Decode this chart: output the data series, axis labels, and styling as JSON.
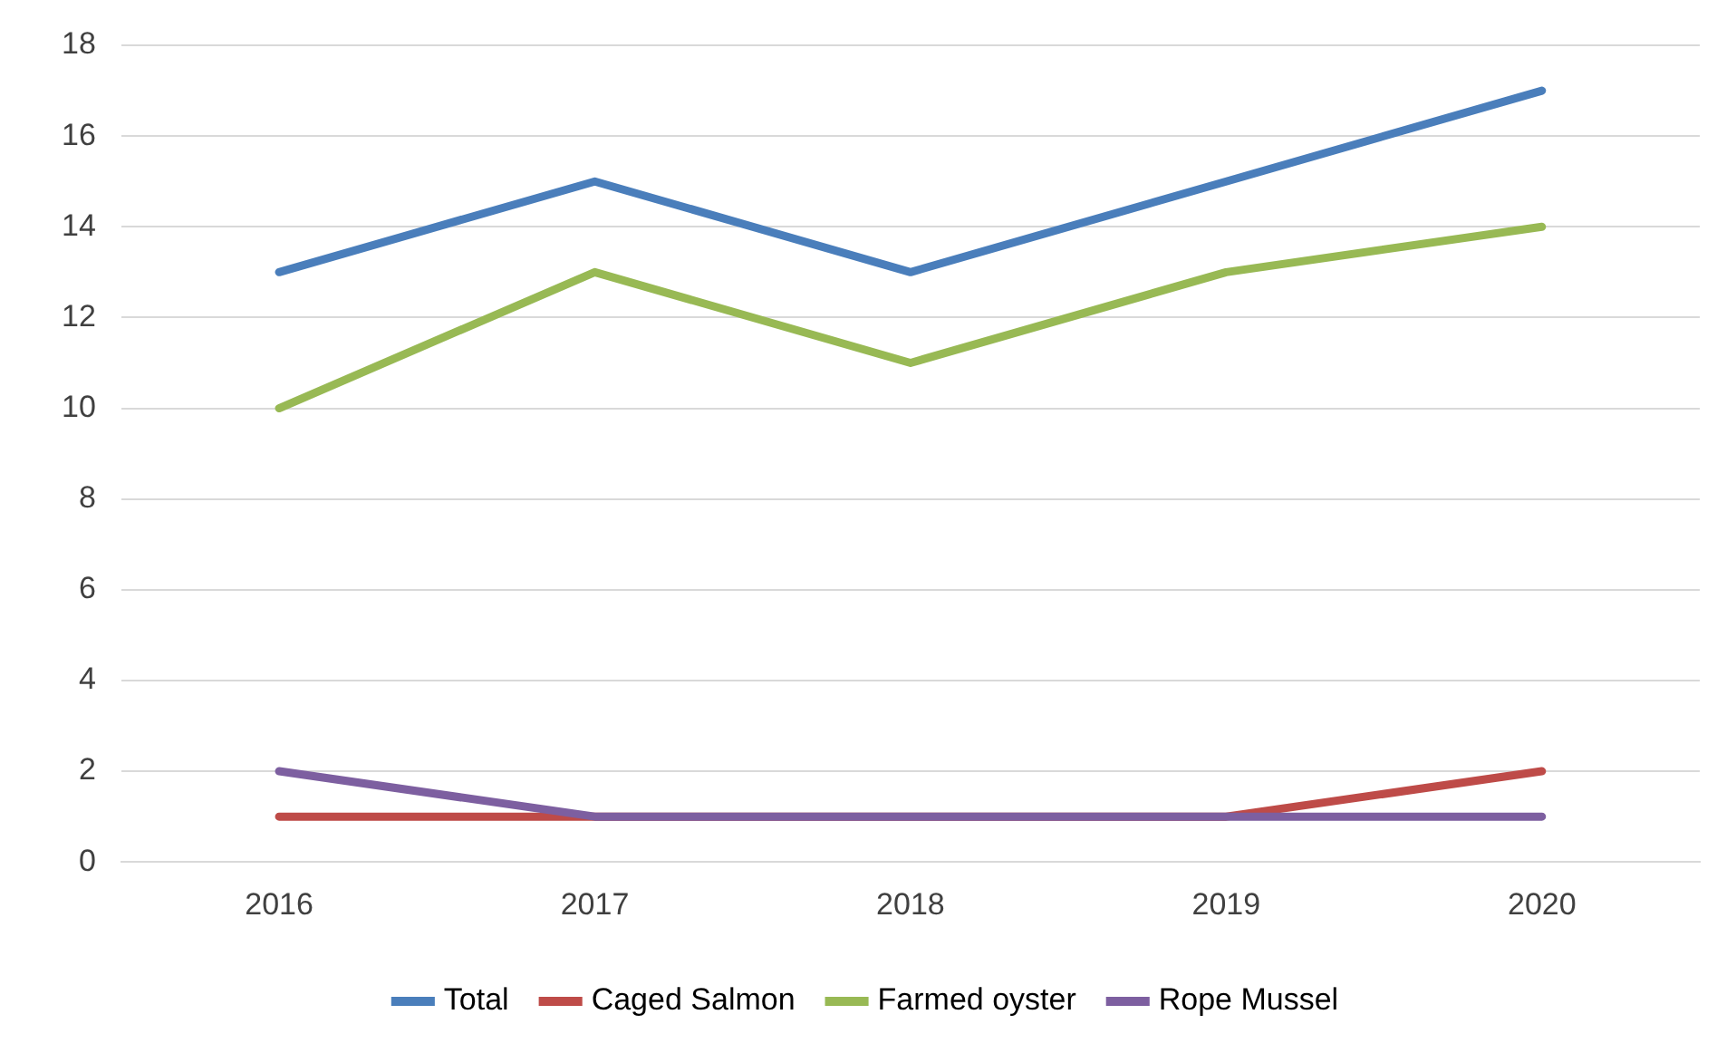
{
  "chart_data": {
    "type": "line",
    "categories": [
      "2016",
      "2017",
      "2018",
      "2019",
      "2020"
    ],
    "series": [
      {
        "name": "Total",
        "color": "#4a7ebb",
        "values": [
          13,
          15,
          13,
          15,
          17
        ]
      },
      {
        "name": "Caged Salmon",
        "color": "#be4b48",
        "values": [
          1,
          1,
          1,
          1,
          2
        ]
      },
      {
        "name": "Farmed oyster",
        "color": "#98b954",
        "values": [
          10,
          13,
          11,
          13,
          14
        ]
      },
      {
        "name": "Rope Mussel",
        "color": "#7d5fa0",
        "values": [
          2,
          1,
          1,
          1,
          1
        ]
      }
    ],
    "ylim": [
      0,
      18
    ],
    "yticks": [
      0,
      2,
      4,
      6,
      8,
      10,
      12,
      14,
      16,
      18
    ],
    "grid": "y",
    "legend": "bottom",
    "marker": "none",
    "line_style": "solid"
  }
}
